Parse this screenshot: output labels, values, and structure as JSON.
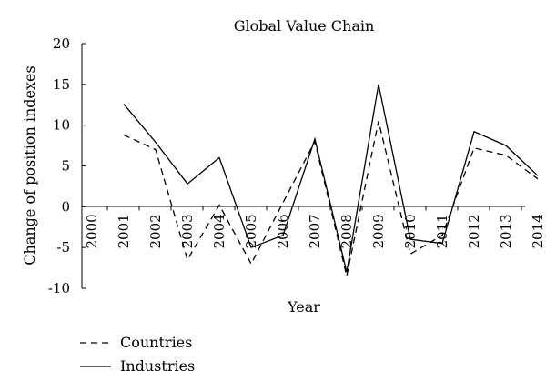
{
  "chart_data": {
    "type": "line",
    "title": "Global Value Chain",
    "xlabel": "Year",
    "ylabel": "Change of position indexes",
    "x": [
      "2000",
      "2001",
      "2002",
      "2003",
      "2004",
      "2005",
      "2006",
      "2007",
      "2008",
      "2009",
      "2010",
      "2011",
      "2012",
      "2013",
      "2014"
    ],
    "yticks": [
      "-10",
      "-5",
      "0",
      "5",
      "10",
      "15",
      "20"
    ],
    "ylim": [
      -10,
      20
    ],
    "grid": false,
    "legend_position": "bottom-left",
    "series": [
      {
        "name": "Countries",
        "style": "dashed",
        "color": "#000000",
        "values": [
          null,
          8.8,
          7.0,
          -6.5,
          0.2,
          -7.0,
          0.5,
          8.0,
          -8.5,
          10.5,
          -5.8,
          -3.5,
          7.2,
          6.3,
          3.4
        ]
      },
      {
        "name": "Industries",
        "style": "solid",
        "color": "#000000",
        "values": [
          null,
          12.6,
          7.9,
          2.8,
          6.0,
          -5.0,
          -3.5,
          8.3,
          -8.0,
          15.0,
          -4.0,
          -4.5,
          9.2,
          7.5,
          3.8
        ]
      }
    ]
  }
}
